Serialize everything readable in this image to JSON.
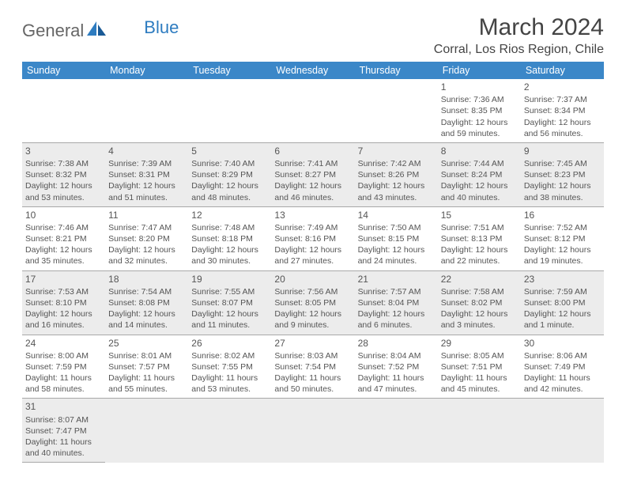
{
  "brand": {
    "part1": "General",
    "part2": "Blue"
  },
  "title": "March 2024",
  "location": "Corral, Los Rios Region, Chile",
  "colors": {
    "header_bg": "#3b87c8",
    "shade_bg": "#ececec",
    "text": "#555555",
    "divider": "#a8a8a8"
  },
  "weekdays": [
    "Sunday",
    "Monday",
    "Tuesday",
    "Wednesday",
    "Thursday",
    "Friday",
    "Saturday"
  ],
  "weeks": [
    {
      "shaded": false,
      "days": [
        null,
        null,
        null,
        null,
        null,
        {
          "n": "1",
          "sunrise": "Sunrise: 7:36 AM",
          "sunset": "Sunset: 8:35 PM",
          "day1": "Daylight: 12 hours",
          "day2": "and 59 minutes."
        },
        {
          "n": "2",
          "sunrise": "Sunrise: 7:37 AM",
          "sunset": "Sunset: 8:34 PM",
          "day1": "Daylight: 12 hours",
          "day2": "and 56 minutes."
        }
      ]
    },
    {
      "shaded": true,
      "days": [
        {
          "n": "3",
          "sunrise": "Sunrise: 7:38 AM",
          "sunset": "Sunset: 8:32 PM",
          "day1": "Daylight: 12 hours",
          "day2": "and 53 minutes."
        },
        {
          "n": "4",
          "sunrise": "Sunrise: 7:39 AM",
          "sunset": "Sunset: 8:31 PM",
          "day1": "Daylight: 12 hours",
          "day2": "and 51 minutes."
        },
        {
          "n": "5",
          "sunrise": "Sunrise: 7:40 AM",
          "sunset": "Sunset: 8:29 PM",
          "day1": "Daylight: 12 hours",
          "day2": "and 48 minutes."
        },
        {
          "n": "6",
          "sunrise": "Sunrise: 7:41 AM",
          "sunset": "Sunset: 8:27 PM",
          "day1": "Daylight: 12 hours",
          "day2": "and 46 minutes."
        },
        {
          "n": "7",
          "sunrise": "Sunrise: 7:42 AM",
          "sunset": "Sunset: 8:26 PM",
          "day1": "Daylight: 12 hours",
          "day2": "and 43 minutes."
        },
        {
          "n": "8",
          "sunrise": "Sunrise: 7:44 AM",
          "sunset": "Sunset: 8:24 PM",
          "day1": "Daylight: 12 hours",
          "day2": "and 40 minutes."
        },
        {
          "n": "9",
          "sunrise": "Sunrise: 7:45 AM",
          "sunset": "Sunset: 8:23 PM",
          "day1": "Daylight: 12 hours",
          "day2": "and 38 minutes."
        }
      ]
    },
    {
      "shaded": false,
      "days": [
        {
          "n": "10",
          "sunrise": "Sunrise: 7:46 AM",
          "sunset": "Sunset: 8:21 PM",
          "day1": "Daylight: 12 hours",
          "day2": "and 35 minutes."
        },
        {
          "n": "11",
          "sunrise": "Sunrise: 7:47 AM",
          "sunset": "Sunset: 8:20 PM",
          "day1": "Daylight: 12 hours",
          "day2": "and 32 minutes."
        },
        {
          "n": "12",
          "sunrise": "Sunrise: 7:48 AM",
          "sunset": "Sunset: 8:18 PM",
          "day1": "Daylight: 12 hours",
          "day2": "and 30 minutes."
        },
        {
          "n": "13",
          "sunrise": "Sunrise: 7:49 AM",
          "sunset": "Sunset: 8:16 PM",
          "day1": "Daylight: 12 hours",
          "day2": "and 27 minutes."
        },
        {
          "n": "14",
          "sunrise": "Sunrise: 7:50 AM",
          "sunset": "Sunset: 8:15 PM",
          "day1": "Daylight: 12 hours",
          "day2": "and 24 minutes."
        },
        {
          "n": "15",
          "sunrise": "Sunrise: 7:51 AM",
          "sunset": "Sunset: 8:13 PM",
          "day1": "Daylight: 12 hours",
          "day2": "and 22 minutes."
        },
        {
          "n": "16",
          "sunrise": "Sunrise: 7:52 AM",
          "sunset": "Sunset: 8:12 PM",
          "day1": "Daylight: 12 hours",
          "day2": "and 19 minutes."
        }
      ]
    },
    {
      "shaded": true,
      "days": [
        {
          "n": "17",
          "sunrise": "Sunrise: 7:53 AM",
          "sunset": "Sunset: 8:10 PM",
          "day1": "Daylight: 12 hours",
          "day2": "and 16 minutes."
        },
        {
          "n": "18",
          "sunrise": "Sunrise: 7:54 AM",
          "sunset": "Sunset: 8:08 PM",
          "day1": "Daylight: 12 hours",
          "day2": "and 14 minutes."
        },
        {
          "n": "19",
          "sunrise": "Sunrise: 7:55 AM",
          "sunset": "Sunset: 8:07 PM",
          "day1": "Daylight: 12 hours",
          "day2": "and 11 minutes."
        },
        {
          "n": "20",
          "sunrise": "Sunrise: 7:56 AM",
          "sunset": "Sunset: 8:05 PM",
          "day1": "Daylight: 12 hours",
          "day2": "and 9 minutes."
        },
        {
          "n": "21",
          "sunrise": "Sunrise: 7:57 AM",
          "sunset": "Sunset: 8:04 PM",
          "day1": "Daylight: 12 hours",
          "day2": "and 6 minutes."
        },
        {
          "n": "22",
          "sunrise": "Sunrise: 7:58 AM",
          "sunset": "Sunset: 8:02 PM",
          "day1": "Daylight: 12 hours",
          "day2": "and 3 minutes."
        },
        {
          "n": "23",
          "sunrise": "Sunrise: 7:59 AM",
          "sunset": "Sunset: 8:00 PM",
          "day1": "Daylight: 12 hours",
          "day2": "and 1 minute."
        }
      ]
    },
    {
      "shaded": false,
      "days": [
        {
          "n": "24",
          "sunrise": "Sunrise: 8:00 AM",
          "sunset": "Sunset: 7:59 PM",
          "day1": "Daylight: 11 hours",
          "day2": "and 58 minutes."
        },
        {
          "n": "25",
          "sunrise": "Sunrise: 8:01 AM",
          "sunset": "Sunset: 7:57 PM",
          "day1": "Daylight: 11 hours",
          "day2": "and 55 minutes."
        },
        {
          "n": "26",
          "sunrise": "Sunrise: 8:02 AM",
          "sunset": "Sunset: 7:55 PM",
          "day1": "Daylight: 11 hours",
          "day2": "and 53 minutes."
        },
        {
          "n": "27",
          "sunrise": "Sunrise: 8:03 AM",
          "sunset": "Sunset: 7:54 PM",
          "day1": "Daylight: 11 hours",
          "day2": "and 50 minutes."
        },
        {
          "n": "28",
          "sunrise": "Sunrise: 8:04 AM",
          "sunset": "Sunset: 7:52 PM",
          "day1": "Daylight: 11 hours",
          "day2": "and 47 minutes."
        },
        {
          "n": "29",
          "sunrise": "Sunrise: 8:05 AM",
          "sunset": "Sunset: 7:51 PM",
          "day1": "Daylight: 11 hours",
          "day2": "and 45 minutes."
        },
        {
          "n": "30",
          "sunrise": "Sunrise: 8:06 AM",
          "sunset": "Sunset: 7:49 PM",
          "day1": "Daylight: 11 hours",
          "day2": "and 42 minutes."
        }
      ]
    },
    {
      "shaded": true,
      "days": [
        {
          "n": "31",
          "sunrise": "Sunrise: 8:07 AM",
          "sunset": "Sunset: 7:47 PM",
          "day1": "Daylight: 11 hours",
          "day2": "and 40 minutes."
        },
        null,
        null,
        null,
        null,
        null,
        null
      ]
    }
  ]
}
